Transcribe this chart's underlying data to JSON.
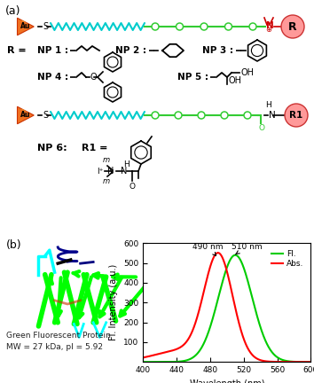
{
  "spectrum": {
    "wavelength_start": 400,
    "wavelength_end": 600,
    "abs_peak": 490,
    "fl_peak": 510,
    "abs_color": "#ff0000",
    "fl_color": "#00cc00",
    "ylim": [
      0,
      600
    ],
    "yticks": [
      100,
      200,
      300,
      400,
      500,
      600
    ],
    "xticks": [
      400,
      440,
      480,
      520,
      560,
      600
    ],
    "ylabel": "Fl. Intensity (a.u.)",
    "xlabel": "Wavelength (nm)",
    "legend_fl": "Fl.",
    "legend_abs": "Abs.",
    "annotation_490": "490 nm",
    "annotation_510": "510 nm"
  },
  "gfp_text": "Green Fluorescent Protein",
  "gfp_mw": "MW = 27 kDa, pI = 5.92",
  "cyan_color": "#00cccc",
  "green_color": "#33cc33",
  "au_fill": "#f07020",
  "au_edge": "#cc3300",
  "au_highlight": "#ffcc44",
  "r_fill": "#ff9999",
  "r_edge": "#cc3333",
  "red_text": "#cc0000"
}
